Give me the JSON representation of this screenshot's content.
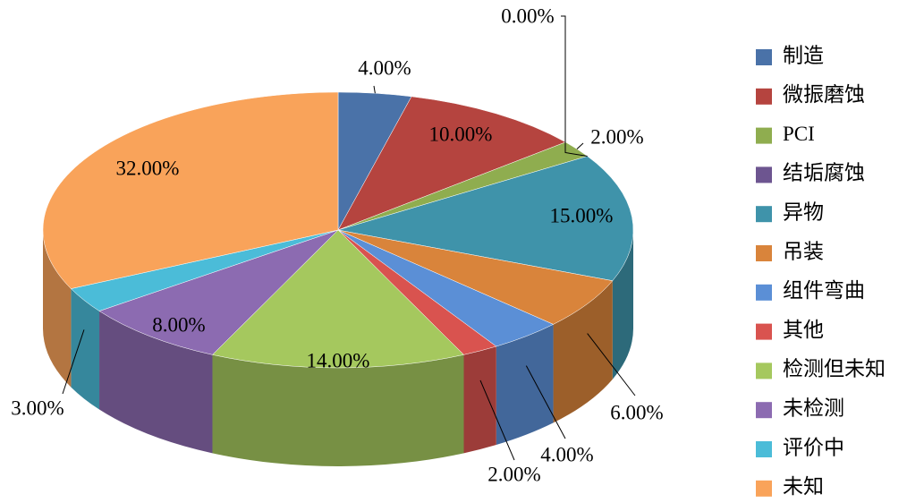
{
  "chart_data": {
    "type": "pie",
    "categories": [
      "制造",
      "微振磨蚀",
      "PCI",
      "结垢腐蚀",
      "异物",
      "吊装",
      "组件弯曲",
      "其他",
      "检测但未知",
      "未检测",
      "评价中",
      "未知"
    ],
    "values": [
      4,
      10,
      2,
      0,
      15,
      6,
      4,
      2,
      14,
      8,
      3,
      32
    ],
    "value_labels": [
      "4.00%",
      "10.00%",
      "2.00%",
      "0.00%",
      "15.00%",
      "6.00%",
      "4.00%",
      "2.00%",
      "14.00%",
      "8.00%",
      "3.00%",
      "32.00%"
    ],
    "colors": [
      "#4a72a8",
      "#b5443f",
      "#8fad4f",
      "#6d5590",
      "#3f93aa",
      "#d9843b",
      "#5b8fd6",
      "#d9534f",
      "#a5c85e",
      "#8c6bb1",
      "#4bbcd8",
      "#f9a35a"
    ],
    "legend": "right"
  }
}
